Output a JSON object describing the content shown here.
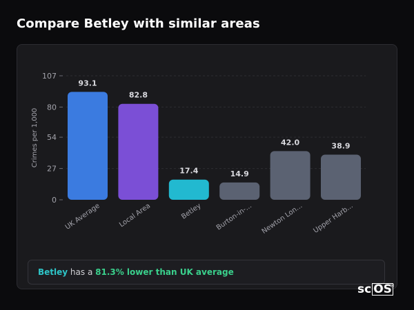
{
  "header": {
    "title": "Compare Betley with similar areas"
  },
  "chart_data": {
    "type": "bar",
    "ylabel": "Crimes per 1,000",
    "ylim": [
      0,
      107
    ],
    "yticks": [
      0,
      27,
      54,
      80,
      107
    ],
    "grid": true,
    "categories": [
      "UK Average",
      "Local Area",
      "Betley",
      "Burton-in-...",
      "Newton Lon...",
      "Upper Harb..."
    ],
    "values": [
      93.1,
      82.8,
      17.4,
      14.9,
      42.0,
      38.9
    ],
    "value_labels": [
      "93.1",
      "82.8",
      "17.4",
      "14.9",
      "42.0",
      "38.9"
    ],
    "colors": [
      "#3b7be0",
      "#7b4fd6",
      "#22b9d0",
      "#5b6272",
      "#5b6272",
      "#5b6272"
    ]
  },
  "summary": {
    "place": "Betley",
    "text_mid": " has a ",
    "highlight": "81.3% lower than UK average"
  },
  "logo": {
    "text_a": "sc",
    "text_b": "OS",
    "reg": "®"
  }
}
